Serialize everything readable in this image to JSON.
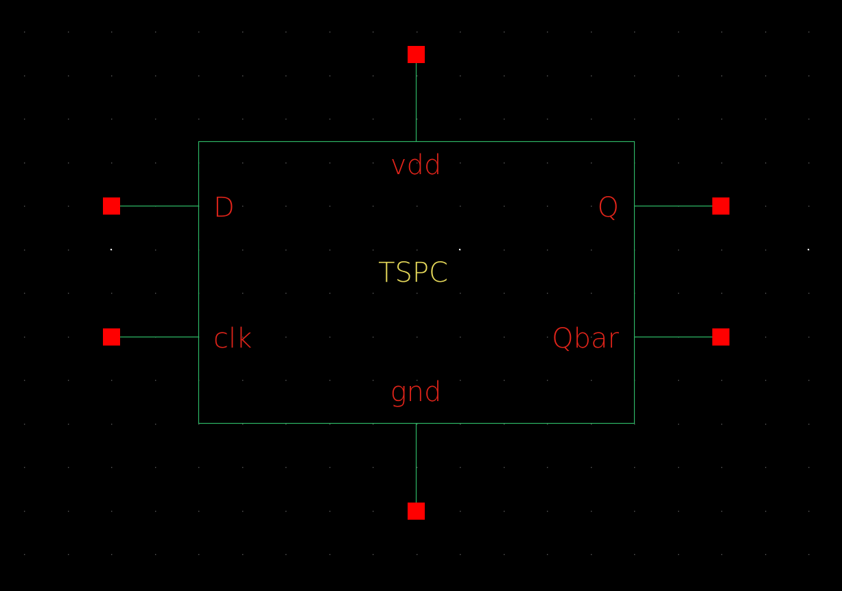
{
  "symbol": {
    "name": "TSPC",
    "colors": {
      "background": "#000000",
      "grid_dot": "#5a5a5a",
      "wire": "#2eb866",
      "pin": "#ff0000",
      "pin_label": "#e0241a",
      "cell_label": "#e6d95a"
    },
    "pins": {
      "top": "vdd",
      "left_upper": "D",
      "left_lower": "clk",
      "right_upper": "Q",
      "right_lower": "Qbar",
      "bottom": "gnd"
    }
  }
}
